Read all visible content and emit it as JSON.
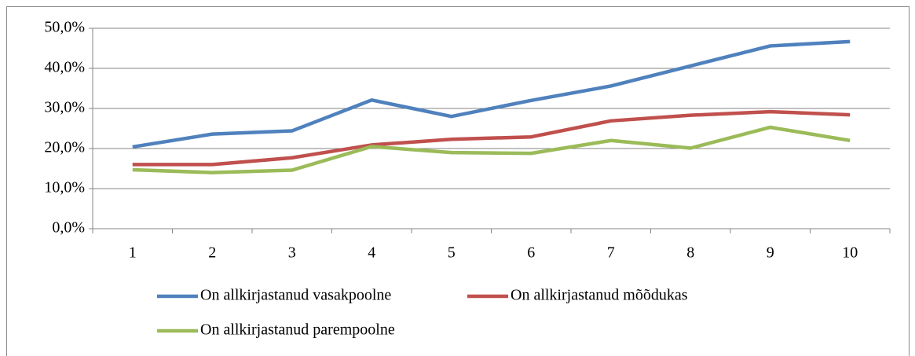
{
  "chart_data": {
    "type": "line",
    "categories": [
      "1",
      "2",
      "3",
      "4",
      "5",
      "6",
      "7",
      "8",
      "9",
      "10"
    ],
    "series": [
      {
        "name": "On allkirjastanud vasakpoolne",
        "color": "#4f81bd",
        "values": [
          20.4,
          23.6,
          24.4,
          32.1,
          28.0,
          32.0,
          35.6,
          40.6,
          45.6,
          46.7
        ]
      },
      {
        "name": "On allkirjastanud mõõdukas",
        "color": "#c0504d",
        "values": [
          16.0,
          16.0,
          17.7,
          20.9,
          22.3,
          22.9,
          26.9,
          28.3,
          29.2,
          28.4
        ]
      },
      {
        "name": "On allkirjastanud parempoolne",
        "color": "#9bbb59",
        "values": [
          14.7,
          14.0,
          14.6,
          20.5,
          19.0,
          18.8,
          22.0,
          20.1,
          25.3,
          22.0
        ]
      }
    ],
    "ylim": [
      0,
      50
    ],
    "yticks": [
      {
        "value": 0,
        "label": "0,0%"
      },
      {
        "value": 10,
        "label": "10,0%"
      },
      {
        "value": 20,
        "label": "20,0%"
      },
      {
        "value": 30,
        "label": "30,0%"
      },
      {
        "value": 40,
        "label": "40,0%"
      },
      {
        "value": 50,
        "label": "50,0%"
      }
    ],
    "grid": true
  }
}
